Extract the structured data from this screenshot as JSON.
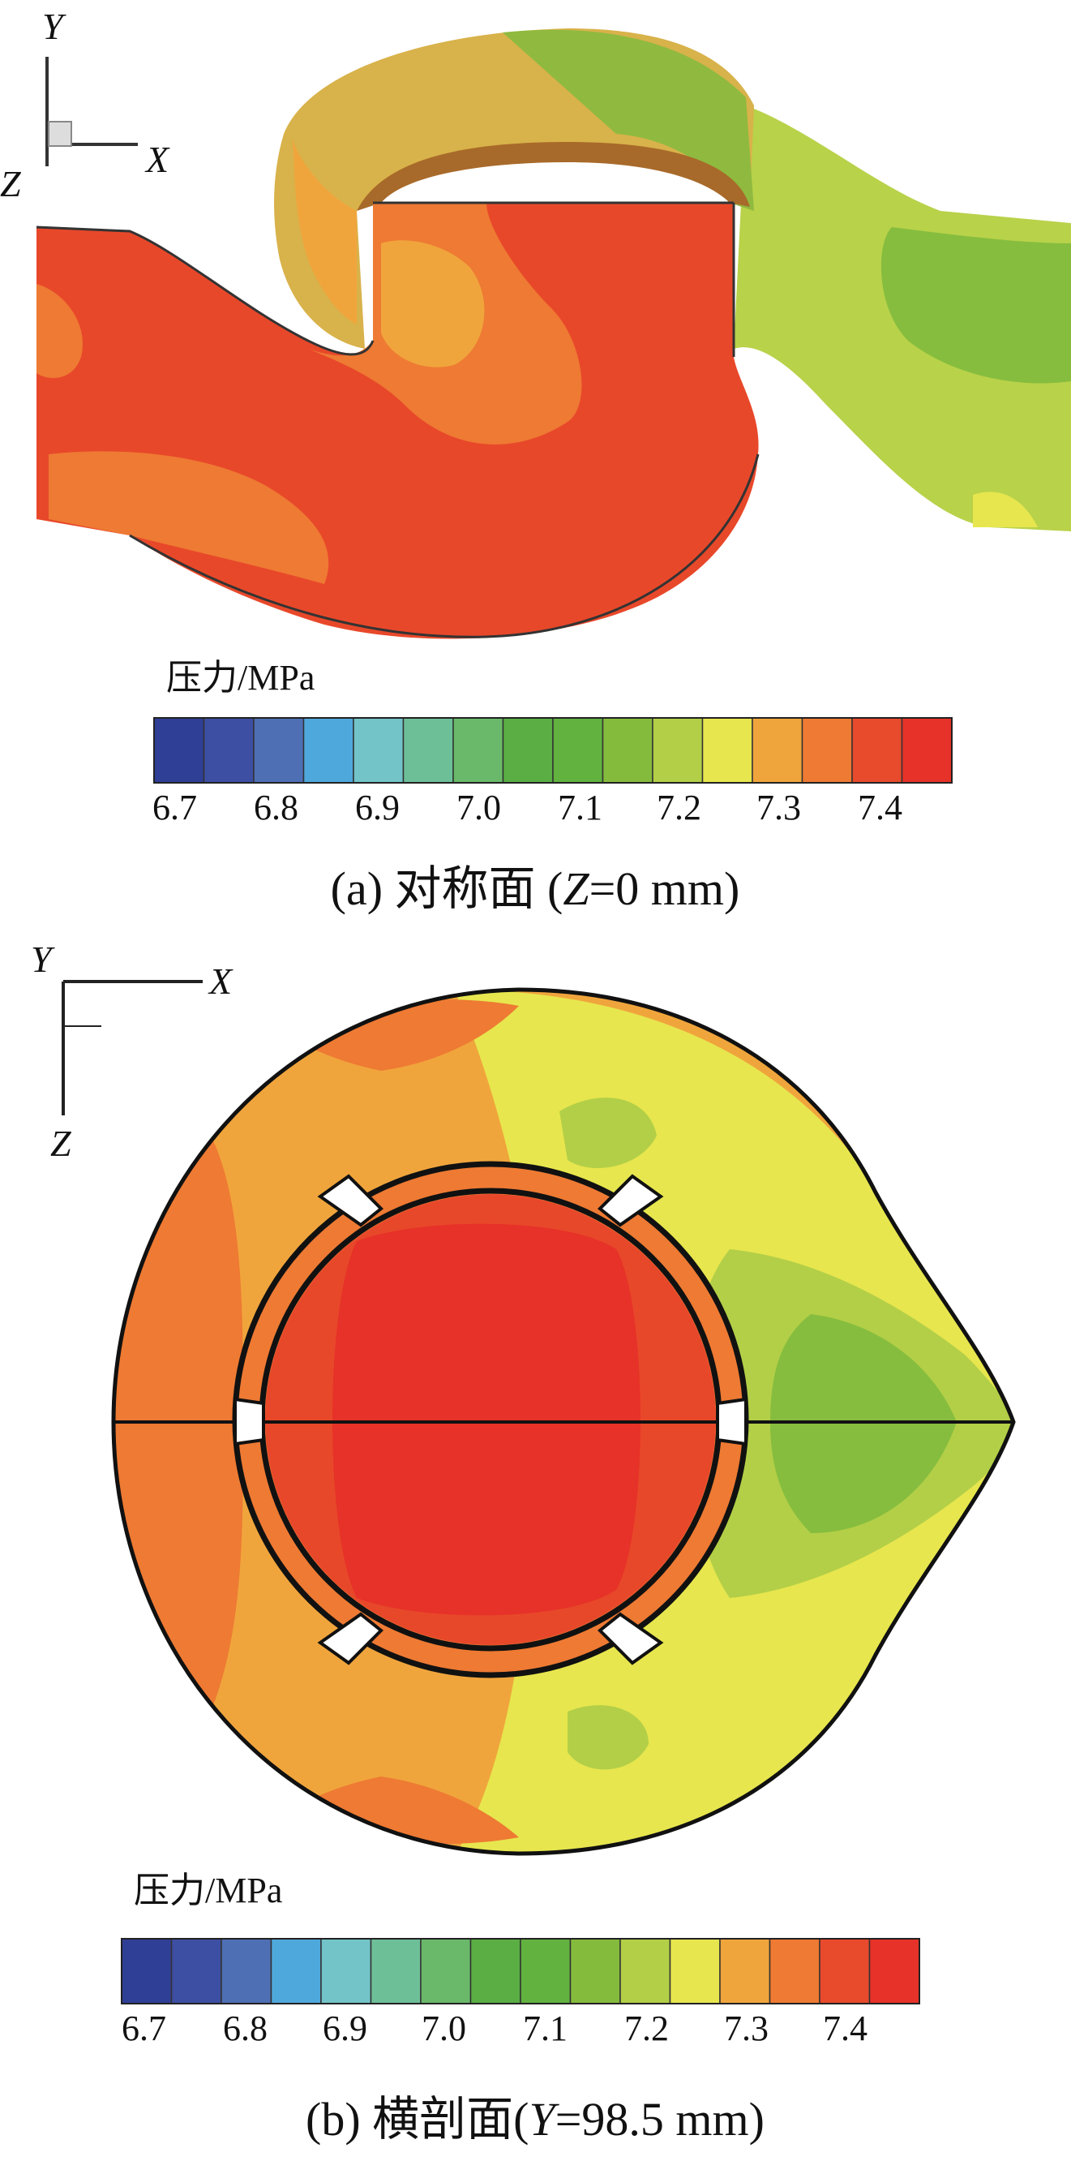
{
  "panel_a": {
    "axis": {
      "y": "Y",
      "x": "X",
      "z": "Z"
    },
    "legend": {
      "title": "压力/MPa",
      "ticks": [
        "6.7",
        "6.8",
        "6.9",
        "7.0",
        "7.1",
        "7.2",
        "7.3",
        "7.4"
      ]
    },
    "caption": {
      "prefix": "(a) 对称面 (",
      "var": "Z",
      "suffix": "=0 mm)"
    }
  },
  "panel_b": {
    "axis": {
      "y": "Y",
      "x": "X",
      "z": "Z"
    },
    "legend": {
      "title": "压力/MPa",
      "ticks": [
        "6.7",
        "6.8",
        "6.9",
        "7.0",
        "7.1",
        "7.2",
        "7.3",
        "7.4"
      ]
    },
    "caption": {
      "prefix": "(b) 横剖面(",
      "var": "Y",
      "suffix": "=98.5 mm)"
    }
  },
  "colorbar": {
    "colors": [
      "#2f3f96",
      "#3c4fa3",
      "#4f6fb5",
      "#4fa8dc",
      "#72c4c8",
      "#6dbf98",
      "#6ab96a",
      "#5aae44",
      "#62b240",
      "#85bb3c",
      "#b3cf47",
      "#e7e64e",
      "#f0a53c",
      "#ee7a33",
      "#e84a2c",
      "#e63228"
    ]
  }
}
